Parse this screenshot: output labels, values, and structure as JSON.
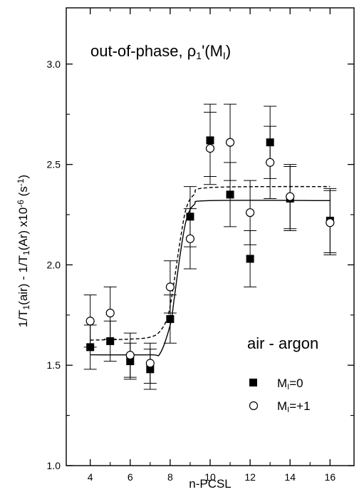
{
  "chart_data": {
    "type": "scatter",
    "title": "",
    "xlabel": "n-PCSL",
    "ylabel_parts": {
      "a": "1/T",
      "b": "1",
      "c": "(air) - 1/T",
      "d": "1",
      "e": "(Ar) x10",
      "f": "-6",
      "g": "  (s",
      "h": "-1",
      "i": ")"
    },
    "xlim": [
      2.8,
      17.2
    ],
    "ylim": [
      1.0,
      3.28
    ],
    "x_ticks": [
      "4",
      "6",
      "8",
      "10",
      "12",
      "14",
      "16"
    ],
    "x_tick_values": [
      4,
      6,
      8,
      10,
      12,
      14,
      16
    ],
    "x_minor_ticks": [
      5,
      7,
      9,
      11,
      13,
      15
    ],
    "y_ticks": [
      "1.0",
      "1.5",
      "2.0",
      "2.5",
      "3.0"
    ],
    "y_tick_values": [
      1.0,
      1.5,
      2.0,
      2.5,
      3.0
    ],
    "y_minor_ticks": [
      1.25,
      1.75,
      2.25,
      2.75
    ],
    "grid": false,
    "legend_position": "bottom-right",
    "annotations": {
      "top": {
        "a": "out-of-phase,  ρ",
        "b": "1",
        "c": "'(M",
        "d": "I",
        "e": ")"
      },
      "condition": "air - argon"
    },
    "series": [
      {
        "name_parts": {
          "a": "M",
          "b": "I",
          "c": "=0"
        },
        "marker": "filled-square",
        "color": "#000000",
        "x": [
          4,
          5,
          6,
          7,
          8,
          9,
          10,
          11,
          12,
          13,
          14,
          16
        ],
        "y": [
          1.59,
          1.62,
          1.52,
          1.48,
          1.73,
          2.24,
          2.62,
          2.35,
          2.03,
          2.61,
          2.33,
          2.22
        ],
        "err": [
          0.11,
          0.1,
          0.09,
          0.1,
          0.12,
          0.15,
          0.18,
          0.16,
          0.14,
          0.18,
          0.16,
          0.16
        ],
        "fit": {
          "style": "solid",
          "points": [
            [
              4,
              1.552
            ],
            [
              7,
              1.552
            ],
            [
              7.5,
              1.56
            ],
            [
              8.0,
              1.7
            ],
            [
              8.2,
              1.83
            ],
            [
              8.5,
              2.05
            ],
            [
              8.8,
              2.22
            ],
            [
              9.2,
              2.3
            ],
            [
              10,
              2.32
            ],
            [
              16,
              2.32
            ]
          ]
        }
      },
      {
        "name_parts": {
          "a": "M",
          "b": "I",
          "c": "=+1"
        },
        "marker": "open-circle",
        "color": "#000000",
        "x": [
          4,
          5,
          6,
          7,
          8,
          9,
          10,
          11,
          12,
          13,
          14,
          16
        ],
        "y": [
          1.72,
          1.76,
          1.55,
          1.51,
          1.89,
          2.13,
          2.58,
          2.61,
          2.26,
          2.51,
          2.34,
          2.21
        ],
        "err": [
          0.13,
          0.13,
          0.11,
          0.1,
          0.13,
          0.15,
          0.18,
          0.19,
          0.16,
          0.18,
          0.16,
          0.16
        ],
        "fit": {
          "style": "dashed",
          "points": [
            [
              4,
              1.625
            ],
            [
              6,
              1.63
            ],
            [
              7,
              1.64
            ],
            [
              7.5,
              1.67
            ],
            [
              7.9,
              1.75
            ],
            [
              8.2,
              1.92
            ],
            [
              8.5,
              2.12
            ],
            [
              8.8,
              2.28
            ],
            [
              9.2,
              2.35
            ],
            [
              10,
              2.385
            ],
            [
              16,
              2.39
            ]
          ]
        }
      }
    ]
  }
}
